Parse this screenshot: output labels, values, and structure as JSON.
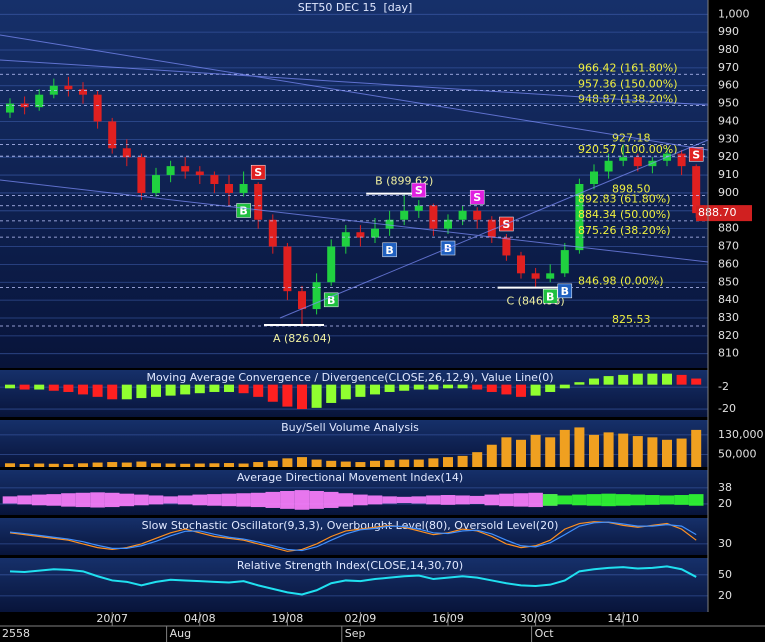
{
  "chart_data": [
    {
      "type": "candlestick",
      "title": "SET50 DEC 15  [day]",
      "categories": [
        null,
        null,
        null,
        null,
        null,
        null,
        null,
        "20/07",
        null,
        null,
        null,
        null,
        null,
        "04/08",
        null,
        null,
        null,
        null,
        null,
        "19/08",
        null,
        null,
        null,
        null,
        "02/09",
        null,
        null,
        null,
        null,
        null,
        "16/09",
        null,
        null,
        null,
        null,
        null,
        "30/09",
        null,
        null,
        null,
        null,
        null,
        "14/10",
        null,
        null,
        null,
        null,
        null
      ],
      "year": "2558",
      "months": [
        {
          "value": 11,
          "label": "Aug"
        },
        {
          "value": 23,
          "label": "Sep"
        },
        {
          "value": 36,
          "label": "Oct"
        }
      ],
      "open": [
        945,
        950,
        948,
        955,
        960,
        958,
        955,
        940,
        925,
        920,
        900,
        910,
        915,
        912,
        910,
        905,
        900,
        905,
        885,
        870,
        845,
        835,
        850,
        870,
        878,
        875,
        880,
        885,
        890,
        893,
        880,
        885,
        890,
        885,
        875,
        865,
        855,
        852,
        855,
        868,
        905,
        912,
        918,
        920,
        915,
        918,
        922,
        915
      ],
      "high": [
        953,
        954,
        958,
        964,
        965,
        962,
        957,
        942,
        930,
        922,
        914,
        918,
        920,
        915,
        912,
        910,
        912,
        906,
        888,
        872,
        848,
        855,
        874,
        882,
        882,
        886,
        890,
        899.62,
        896,
        894,
        888,
        893,
        892,
        887,
        877,
        867,
        858,
        860,
        872,
        908,
        916,
        922,
        927.18,
        922,
        920,
        925,
        924,
        916
      ],
      "low": [
        942,
        944,
        946,
        953,
        954,
        950,
        936,
        922,
        915,
        896,
        898,
        906,
        908,
        905,
        900,
        893,
        898,
        880,
        866,
        840,
        826.04,
        832,
        848,
        866,
        870,
        872,
        876,
        882,
        886,
        876,
        877,
        882,
        880,
        872,
        862,
        852,
        846.98,
        850,
        853,
        866,
        902,
        908,
        915,
        912,
        911,
        915,
        910,
        886
      ],
      "close": [
        950,
        948,
        955,
        960,
        958,
        955,
        940,
        925,
        920,
        900,
        910,
        915,
        912,
        910,
        905,
        900,
        905,
        885,
        870,
        845,
        835,
        850,
        870,
        878,
        875,
        880,
        885,
        890,
        893,
        880,
        885,
        890,
        885,
        875,
        865,
        855,
        852,
        855,
        868,
        905,
        912,
        918,
        920,
        915,
        918,
        922,
        915,
        888.7
      ],
      "up_color": "#20d040",
      "down_color": "#e02020",
      "ylim": [
        802,
        1008
      ],
      "yticks": [
        {
          "value": 1000,
          "label": "1,000"
        },
        990,
        980,
        970,
        960,
        950,
        940,
        930,
        920,
        910,
        900,
        890,
        880,
        870,
        860,
        850,
        840,
        830,
        820,
        810
      ],
      "last_price": {
        "value": 888.7,
        "label": "888.70"
      },
      "levels": [
        {
          "value": 966.42,
          "label": "966.42 (161.80%)"
        },
        {
          "value": 957.36,
          "label": "957.36 (150.00%)"
        },
        {
          "value": 948.87,
          "label": "948.87 (138.20%)"
        },
        {
          "value": 927.18,
          "label": "927.18"
        },
        {
          "value": 920.57,
          "label": "920.57 (100.00%)"
        },
        {
          "value": 898.5,
          "label": "898.50"
        },
        {
          "value": 892.83,
          "label": "892.83 (61.80%)"
        },
        {
          "value": 884.34,
          "label": "884.34 (50.00%)"
        },
        {
          "value": 875.26,
          "label": "875.26 (38.20%)"
        },
        {
          "value": 846.98,
          "label": "846.98 (0.00%)"
        },
        {
          "value": 825.53,
          "label": "825.53"
        }
      ],
      "pivots": [
        {
          "at": 20,
          "value": 826.04,
          "label": "A (826.04)"
        },
        {
          "at": 27,
          "value": 899.62,
          "label": "B (899.62)"
        },
        {
          "at": 36,
          "value": 846.98,
          "label": "C (846.98)"
        }
      ],
      "signals": [
        {
          "at": 16,
          "label": "B",
          "color": "#20c040"
        },
        {
          "at": 17,
          "label": "S",
          "color": "#e02020"
        },
        {
          "at": 22,
          "label": "B",
          "color": "#20c040"
        },
        {
          "at": 26,
          "label": "B",
          "color": "#2060c0"
        },
        {
          "at": 28,
          "label": "S",
          "color": "#e020e0"
        },
        {
          "at": 30,
          "label": "B",
          "color": "#2060c0"
        },
        {
          "at": 32,
          "label": "S",
          "color": "#e020e0"
        },
        {
          "at": 34,
          "label": "S",
          "color": "#e02020"
        },
        {
          "at": 37,
          "label": "B",
          "color": "#20c040"
        },
        {
          "at": 38,
          "label": "B",
          "color": "#2060c0"
        },
        {
          "at": 47,
          "label": "S",
          "color": "#e02020"
        }
      ]
    },
    {
      "type": "bar",
      "title": "Moving Average Convergence / Divergence(CLOSE,26,12,9), Value Line(0)",
      "values": [
        -3,
        -4,
        -4,
        -5,
        -6,
        -8,
        -10,
        -12,
        -12,
        -11,
        -10,
        -9,
        -8,
        -7,
        -6,
        -6,
        -7,
        -10,
        -14,
        -18,
        -20,
        -19,
        -15,
        -12,
        -10,
        -8,
        -6,
        -5,
        -4,
        -4,
        -3,
        -3,
        -4,
        -6,
        -8,
        -10,
        -9,
        -6,
        -3,
        2,
        5,
        7,
        8,
        9,
        9,
        9,
        8,
        5
      ],
      "up_color": "#90ff30",
      "down_color": "#ff2020",
      "ylim": [
        -26.5,
        12
      ],
      "yticks": [
        -2,
        -20
      ]
    },
    {
      "type": "bar",
      "title": "Buy/Sell Volume Analysis",
      "values": [
        15000,
        12000,
        14000,
        13000,
        12000,
        15000,
        18000,
        20000,
        18000,
        22000,
        15000,
        14000,
        13000,
        14000,
        15000,
        16000,
        14000,
        20000,
        25000,
        35000,
        40000,
        30000,
        25000,
        22000,
        20000,
        25000,
        28000,
        30000,
        30000,
        35000,
        40000,
        45000,
        60000,
        90000,
        120000,
        110000,
        130000,
        120000,
        150000,
        160000,
        130000,
        140000,
        135000,
        125000,
        120000,
        110000,
        115000,
        150000
      ],
      "color": "#f0a020",
      "ylim": [
        0,
        190000
      ],
      "yticks": [
        {
          "value": 130000,
          "label": "130,000"
        },
        {
          "value": 50000,
          "label": "50,000"
        }
      ]
    },
    {
      "type": "area",
      "title": "Average Directional Movement Index(14)",
      "series": [
        {
          "color": "#ff80ff",
          "values": [
            28,
            30,
            32,
            33,
            35,
            36,
            37,
            36,
            34,
            32,
            30,
            28,
            30,
            32,
            33,
            34,
            35,
            36,
            38,
            40,
            42,
            40,
            38,
            35,
            32,
            30,
            28,
            27,
            28,
            30,
            31,
            30,
            29,
            32,
            34,
            35,
            36,
            33,
            null,
            null,
            null,
            null,
            null,
            null,
            null,
            null,
            null,
            null
          ]
        },
        {
          "color": "#30ff30",
          "values": [
            null,
            null,
            null,
            null,
            null,
            null,
            null,
            null,
            null,
            null,
            null,
            null,
            null,
            null,
            null,
            null,
            null,
            null,
            null,
            null,
            null,
            null,
            null,
            null,
            null,
            null,
            null,
            null,
            null,
            null,
            null,
            null,
            null,
            null,
            null,
            null,
            null,
            33,
            30,
            32,
            33,
            34,
            33,
            32,
            31,
            30,
            31,
            33
          ]
        }
      ],
      "ylim": [
        7.6,
        58
      ],
      "yticks": [
        38,
        20
      ]
    },
    {
      "type": "line",
      "title": "Slow Stochastic Oscillator(9,3,3), Overbought Level(80), Oversold Level(20)",
      "series": [
        {
          "color": "#ff9020",
          "values": [
            60,
            55,
            50,
            45,
            40,
            30,
            20,
            15,
            20,
            30,
            45,
            60,
            70,
            60,
            50,
            45,
            40,
            30,
            20,
            10,
            15,
            30,
            50,
            65,
            70,
            75,
            80,
            75,
            65,
            55,
            60,
            70,
            65,
            50,
            30,
            20,
            25,
            40,
            70,
            85,
            90,
            88,
            80,
            75,
            80,
            85,
            70,
            40
          ]
        },
        {
          "color": "#4090ff",
          "values": [
            62,
            58,
            53,
            48,
            43,
            36,
            26,
            18,
            18,
            25,
            37,
            52,
            64,
            65,
            56,
            48,
            43,
            35,
            25,
            15,
            12,
            22,
            40,
            57,
            68,
            72,
            78,
            77,
            70,
            60,
            58,
            65,
            67,
            57,
            40,
            25,
            22,
            33,
            55,
            78,
            87,
            89,
            84,
            78,
            78,
            82,
            78,
            55
          ]
        }
      ],
      "ylim": [
        0,
        100
      ],
      "yticks": [
        30
      ]
    },
    {
      "type": "line",
      "title": "Relative Strength Index(CLOSE,14,30,70)",
      "series": [
        {
          "color": "#20e0f0",
          "values": [
            55,
            54,
            56,
            58,
            57,
            55,
            48,
            42,
            40,
            35,
            40,
            43,
            42,
            41,
            40,
            39,
            41,
            35,
            30,
            25,
            22,
            28,
            38,
            42,
            41,
            44,
            46,
            48,
            49,
            44,
            46,
            48,
            46,
            42,
            38,
            35,
            34,
            36,
            42,
            55,
            58,
            60,
            61,
            59,
            60,
            62,
            58,
            47
          ]
        }
      ],
      "ylim": [
        -3,
        74
      ],
      "yticks": [
        50,
        20
      ]
    }
  ]
}
